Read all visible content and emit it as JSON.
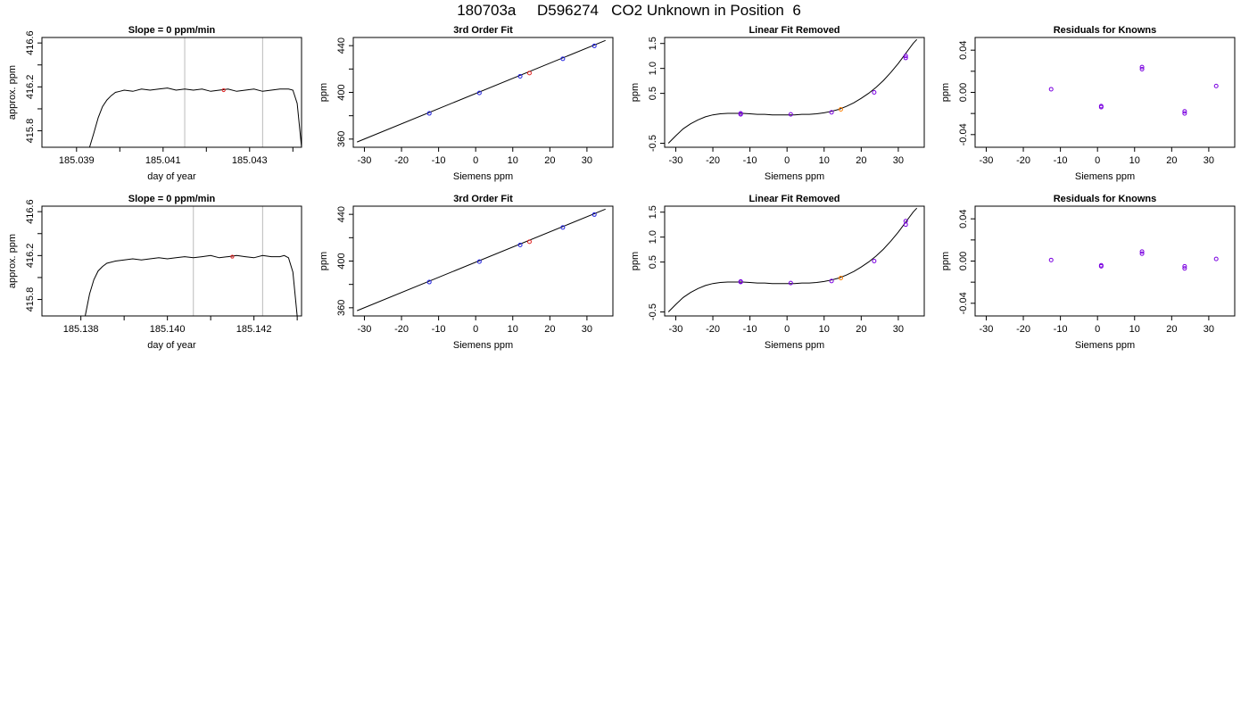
{
  "title": "180703a     D596274   CO2 Unknown in Position  6",
  "colors": {
    "known": "#2020e0",
    "residual": "#7a00e0",
    "unknown_fit": "#e02020",
    "unknown_lin": "#ff7f00",
    "trace": "#000000",
    "vline": "#bbbbbb"
  },
  "rows": [
    {
      "trace": {
        "title": "Slope =  0  ppm/min",
        "xlabel": "day of year",
        "ylabel": "approx. ppm",
        "xlim": [
          185.0382,
          185.0442
        ],
        "ylim": [
          415.65,
          416.65
        ],
        "xticks": [
          185.039,
          185.04,
          185.041,
          185.042,
          185.043,
          185.044
        ],
        "xtick_labels": [
          "185.039",
          "",
          "185.041",
          "",
          "185.043",
          ""
        ],
        "yticks": [
          415.8,
          416.0,
          416.2,
          416.4,
          416.6
        ],
        "ytick_labels": [
          "415.8",
          "",
          "416.2",
          "",
          "416.6"
        ],
        "vlines": [
          185.0415,
          185.0433
        ],
        "marker": {
          "x": 185.0424,
          "y": 416.17
        },
        "series": {
          "x": [
            185.0393,
            185.0394,
            185.0395,
            185.0396,
            185.0397,
            185.0398,
            185.0399,
            185.04,
            185.0401,
            185.0403,
            185.0405,
            185.0407,
            185.0409,
            185.0411,
            185.0413,
            185.0415,
            185.0417,
            185.0419,
            185.0421,
            185.0423,
            185.0425,
            185.0427,
            185.0429,
            185.0431,
            185.0433,
            185.0435,
            185.0437,
            185.0439,
            185.044,
            185.0441,
            185.0442
          ],
          "y": [
            415.65,
            415.78,
            415.92,
            416.02,
            416.08,
            416.12,
            416.15,
            416.16,
            416.17,
            416.16,
            416.18,
            416.17,
            416.18,
            416.19,
            416.17,
            416.18,
            416.17,
            416.18,
            416.16,
            416.17,
            416.18,
            416.16,
            416.17,
            416.18,
            416.16,
            416.17,
            416.18,
            416.18,
            416.17,
            416.05,
            415.65
          ]
        }
      },
      "fit": {
        "title": "3rd Order Fit",
        "xlabel": "Siemens ppm",
        "ylabel": "ppm",
        "xlim": [
          -33,
          37
        ],
        "ylim": [
          353,
          447
        ],
        "xticks": [
          -30,
          -20,
          -10,
          0,
          10,
          20,
          30
        ],
        "xtick_labels": [
          "-30",
          "-20",
          "-10",
          "0",
          "10",
          "20",
          "30"
        ],
        "yticks": [
          360,
          380,
          400,
          420,
          440
        ],
        "ytick_labels": [
          "360",
          "",
          "400",
          "",
          "440"
        ],
        "curve": {
          "x": [
            -32,
            35
          ],
          "y": [
            357.5,
            444.5
          ]
        },
        "knowns": {
          "x": [
            -12.5,
            1,
            12,
            23.5,
            32
          ],
          "y": [
            382,
            399.5,
            413.8,
            428.8,
            439.8
          ]
        },
        "unknown": {
          "x": 14.5,
          "y": 416.5
        }
      },
      "linear": {
        "title": "Linear Fit Removed",
        "xlabel": "Siemens ppm",
        "ylabel": "ppm",
        "xlim": [
          -33,
          37
        ],
        "ylim": [
          -0.58,
          1.62
        ],
        "xticks": [
          -30,
          -20,
          -10,
          0,
          10,
          20,
          30
        ],
        "xtick_labels": [
          "-30",
          "-20",
          "-10",
          "0",
          "10",
          "20",
          "30"
        ],
        "yticks": [
          -0.5,
          0.5,
          1.0,
          1.5
        ],
        "ytick_labels": [
          "-0.5",
          "0.5",
          "1.0",
          "1.5"
        ],
        "curve": {
          "x": [
            -32,
            -30,
            -28,
            -26,
            -24,
            -22,
            -20,
            -18,
            -16,
            -14,
            -12,
            -10,
            -8,
            -6,
            -4,
            -2,
            0,
            2,
            4,
            6,
            8,
            10,
            12,
            14,
            16,
            18,
            20,
            22,
            24,
            26,
            28,
            30,
            32,
            34,
            35
          ],
          "y": [
            -0.5,
            -0.35,
            -0.21,
            -0.11,
            -0.03,
            0.03,
            0.07,
            0.09,
            0.1,
            0.1,
            0.1,
            0.09,
            0.08,
            0.08,
            0.07,
            0.07,
            0.07,
            0.07,
            0.08,
            0.08,
            0.09,
            0.11,
            0.14,
            0.18,
            0.24,
            0.31,
            0.4,
            0.5,
            0.62,
            0.76,
            0.92,
            1.1,
            1.3,
            1.5,
            1.58
          ]
        },
        "knowns": {
          "x": [
            -12.5,
            -12.5,
            1,
            12,
            23.5,
            32,
            32
          ],
          "y": [
            0.08,
            0.1,
            0.08,
            0.12,
            0.52,
            1.21,
            1.25
          ]
        },
        "unknown": {
          "x": 14.5,
          "y": 0.18
        }
      },
      "resid": {
        "title": "Residuals for Knowns",
        "xlabel": "Siemens ppm",
        "ylabel": "ppm",
        "xlim": [
          -33,
          37
        ],
        "ylim": [
          -0.052,
          0.052
        ],
        "xticks": [
          -30,
          -20,
          -10,
          0,
          10,
          20,
          30
        ],
        "xtick_labels": [
          "-30",
          "-20",
          "-10",
          "0",
          "10",
          "20",
          "30"
        ],
        "yticks": [
          -0.04,
          -0.02,
          0.0,
          0.02,
          0.04
        ],
        "ytick_labels": [
          "-0.04",
          "",
          "0.00",
          "",
          "0.04"
        ],
        "points": {
          "x": [
            -12.5,
            1,
            1,
            12,
            12,
            23.5,
            23.5,
            32
          ],
          "y": [
            0.003,
            -0.013,
            -0.014,
            0.024,
            0.022,
            -0.018,
            -0.02,
            0.006
          ]
        }
      }
    },
    {
      "trace": {
        "title": "Slope =  0  ppm/min",
        "xlabel": "day of year",
        "ylabel": "approx. ppm",
        "xlim": [
          185.1371,
          185.1431
        ],
        "ylim": [
          415.65,
          416.65
        ],
        "xticks": [
          185.138,
          185.139,
          185.14,
          185.141,
          185.142,
          185.143
        ],
        "xtick_labels": [
          "185.138",
          "",
          "185.140",
          "",
          "185.142",
          ""
        ],
        "yticks": [
          415.8,
          416.0,
          416.2,
          416.4,
          416.6
        ],
        "ytick_labels": [
          "415.8",
          "",
          "416.2",
          "",
          "416.6"
        ],
        "vlines": [
          185.1406,
          185.1422
        ],
        "marker": {
          "x": 185.1415,
          "y": 416.19
        },
        "series": {
          "x": [
            185.1381,
            185.1382,
            185.1383,
            185.1384,
            185.1385,
            185.1386,
            185.1388,
            185.139,
            185.1392,
            185.1394,
            185.1396,
            185.1398,
            185.14,
            185.1402,
            185.1404,
            185.1406,
            185.1408,
            185.141,
            185.1412,
            185.1414,
            185.1416,
            185.1418,
            185.142,
            185.1422,
            185.1424,
            185.1426,
            185.1427,
            185.1428,
            185.1429,
            185.143
          ],
          "y": [
            415.65,
            415.85,
            415.98,
            416.06,
            416.1,
            416.13,
            416.15,
            416.16,
            416.17,
            416.16,
            416.17,
            416.18,
            416.17,
            416.18,
            416.19,
            416.18,
            416.19,
            416.2,
            416.18,
            416.19,
            416.2,
            416.19,
            416.18,
            416.2,
            416.19,
            416.19,
            416.2,
            416.18,
            416.05,
            415.65
          ]
        }
      },
      "fit": {
        "title": "3rd Order Fit",
        "xlabel": "Siemens ppm",
        "ylabel": "ppm",
        "xlim": [
          -33,
          37
        ],
        "ylim": [
          353,
          447
        ],
        "xticks": [
          -30,
          -20,
          -10,
          0,
          10,
          20,
          30
        ],
        "xtick_labels": [
          "-30",
          "-20",
          "-10",
          "0",
          "10",
          "20",
          "30"
        ],
        "yticks": [
          360,
          380,
          400,
          420,
          440
        ],
        "ytick_labels": [
          "360",
          "",
          "400",
          "",
          "440"
        ],
        "curve": {
          "x": [
            -32,
            35
          ],
          "y": [
            357.5,
            444.5
          ]
        },
        "knowns": {
          "x": [
            -12.5,
            1,
            12,
            23.5,
            32
          ],
          "y": [
            382,
            399.5,
            413.8,
            428.8,
            439.8
          ]
        },
        "unknown": {
          "x": 14.5,
          "y": 416.5
        }
      },
      "linear": {
        "title": "Linear Fit Removed",
        "xlabel": "Siemens ppm",
        "ylabel": "ppm",
        "xlim": [
          -33,
          37
        ],
        "ylim": [
          -0.58,
          1.62
        ],
        "xticks": [
          -30,
          -20,
          -10,
          0,
          10,
          20,
          30
        ],
        "xtick_labels": [
          "-30",
          "-20",
          "-10",
          "0",
          "10",
          "20",
          "30"
        ],
        "yticks": [
          -0.5,
          0.5,
          1.0,
          1.5
        ],
        "ytick_labels": [
          "-0.5",
          "0.5",
          "1.0",
          "1.5"
        ],
        "curve": {
          "x": [
            -32,
            -30,
            -28,
            -26,
            -24,
            -22,
            -20,
            -18,
            -16,
            -14,
            -12,
            -10,
            -8,
            -6,
            -4,
            -2,
            0,
            2,
            4,
            6,
            8,
            10,
            12,
            14,
            16,
            18,
            20,
            22,
            24,
            26,
            28,
            30,
            32,
            34,
            35
          ],
          "y": [
            -0.5,
            -0.35,
            -0.21,
            -0.11,
            -0.03,
            0.03,
            0.07,
            0.09,
            0.1,
            0.1,
            0.1,
            0.09,
            0.08,
            0.08,
            0.07,
            0.07,
            0.07,
            0.07,
            0.08,
            0.08,
            0.09,
            0.11,
            0.14,
            0.18,
            0.24,
            0.31,
            0.4,
            0.5,
            0.62,
            0.76,
            0.92,
            1.1,
            1.3,
            1.5,
            1.58
          ]
        },
        "knowns": {
          "x": [
            -12.5,
            -12.5,
            1,
            12,
            23.5,
            32,
            32
          ],
          "y": [
            0.1,
            0.11,
            0.08,
            0.12,
            0.52,
            1.25,
            1.32
          ]
        },
        "unknown": {
          "x": 14.5,
          "y": 0.18
        }
      },
      "resid": {
        "title": "Residuals for Knowns",
        "xlabel": "Siemens ppm",
        "ylabel": "ppm",
        "xlim": [
          -33,
          37
        ],
        "ylim": [
          -0.052,
          0.052
        ],
        "xticks": [
          -30,
          -20,
          -10,
          0,
          10,
          20,
          30
        ],
        "xtick_labels": [
          "-30",
          "-20",
          "-10",
          "0",
          "10",
          "20",
          "30"
        ],
        "yticks": [
          -0.04,
          -0.02,
          0.0,
          0.02,
          0.04
        ],
        "ytick_labels": [
          "-0.04",
          "",
          "0.00",
          "",
          "0.04"
        ],
        "points": {
          "x": [
            -12.5,
            1,
            1,
            12,
            12,
            23.5,
            23.5,
            32
          ],
          "y": [
            0.001,
            -0.004,
            -0.005,
            0.009,
            0.007,
            -0.005,
            -0.007,
            0.002
          ]
        }
      }
    }
  ],
  "chart_data": [
    {
      "type": "line",
      "title": "Slope =  0  ppm/min",
      "xlabel": "day of year",
      "ylabel": "approx. ppm",
      "xlim": [
        185.0382,
        185.0442
      ],
      "ylim": [
        415.65,
        416.65
      ]
    },
    {
      "type": "scatter",
      "title": "3rd Order Fit",
      "xlabel": "Siemens ppm",
      "ylabel": "ppm",
      "xlim": [
        -33,
        37
      ],
      "ylim": [
        353,
        447
      ]
    },
    {
      "type": "scatter",
      "title": "Linear Fit Removed",
      "xlabel": "Siemens ppm",
      "ylabel": "ppm",
      "xlim": [
        -33,
        37
      ],
      "ylim": [
        -0.58,
        1.62
      ]
    },
    {
      "type": "scatter",
      "title": "Residuals for Knowns",
      "xlabel": "Siemens ppm",
      "ylabel": "ppm",
      "xlim": [
        -33,
        37
      ],
      "ylim": [
        -0.052,
        0.052
      ]
    },
    {
      "type": "line",
      "title": "Slope =  0  ppm/min",
      "xlabel": "day of year",
      "ylabel": "approx. ppm",
      "xlim": [
        185.1371,
        185.1431
      ],
      "ylim": [
        415.65,
        416.65
      ]
    },
    {
      "type": "scatter",
      "title": "3rd Order Fit",
      "xlabel": "Siemens ppm",
      "ylabel": "ppm",
      "xlim": [
        -33,
        37
      ],
      "ylim": [
        353,
        447
      ]
    },
    {
      "type": "scatter",
      "title": "Linear Fit Removed",
      "xlabel": "Siemens ppm",
      "ylabel": "ppm",
      "xlim": [
        -33,
        37
      ],
      "ylim": [
        -0.58,
        1.62
      ]
    },
    {
      "type": "scatter",
      "title": "Residuals for Knowns",
      "xlabel": "Siemens ppm",
      "ylabel": "ppm",
      "xlim": [
        -33,
        37
      ],
      "ylim": [
        -0.052,
        0.052
      ]
    }
  ]
}
